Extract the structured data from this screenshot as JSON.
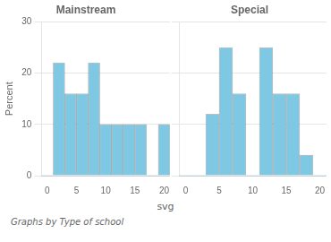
{
  "chart_data": [
    {
      "type": "histogram",
      "title": "Mainstream",
      "bins": [
        -1,
        1,
        3,
        5,
        7,
        9,
        11,
        13,
        15,
        17,
        19,
        21
      ],
      "values": [
        0,
        22,
        16,
        16,
        22,
        10,
        10,
        10,
        10,
        0,
        10
      ],
      "color": "#7EC8E3",
      "ylabel": "Percent",
      "xlim": [
        -1,
        21
      ],
      "xticks": [
        0,
        5,
        10,
        15,
        20
      ],
      "ylim": [
        0,
        30
      ],
      "yticks": [
        0,
        10,
        20,
        30
      ],
      "grid": true
    },
    {
      "type": "histogram",
      "title": "Special",
      "bins": [
        -1,
        1,
        3,
        5,
        7,
        9,
        11,
        13,
        15,
        17,
        19,
        21
      ],
      "values": [
        0,
        0,
        12,
        25,
        16,
        0,
        25,
        16,
        16,
        4,
        0
      ],
      "color": "#7EC8E3",
      "xlim": [
        -1,
        21
      ],
      "xticks": [
        0,
        5,
        10,
        15,
        20
      ],
      "ylim": [
        0,
        30
      ],
      "yticks": [
        0,
        10,
        20,
        30
      ],
      "grid": true,
      "tick_labels": "x"
    }
  ],
  "xlabel": "svg",
  "annotations": [
    "Graphs by  Type of school"
  ]
}
